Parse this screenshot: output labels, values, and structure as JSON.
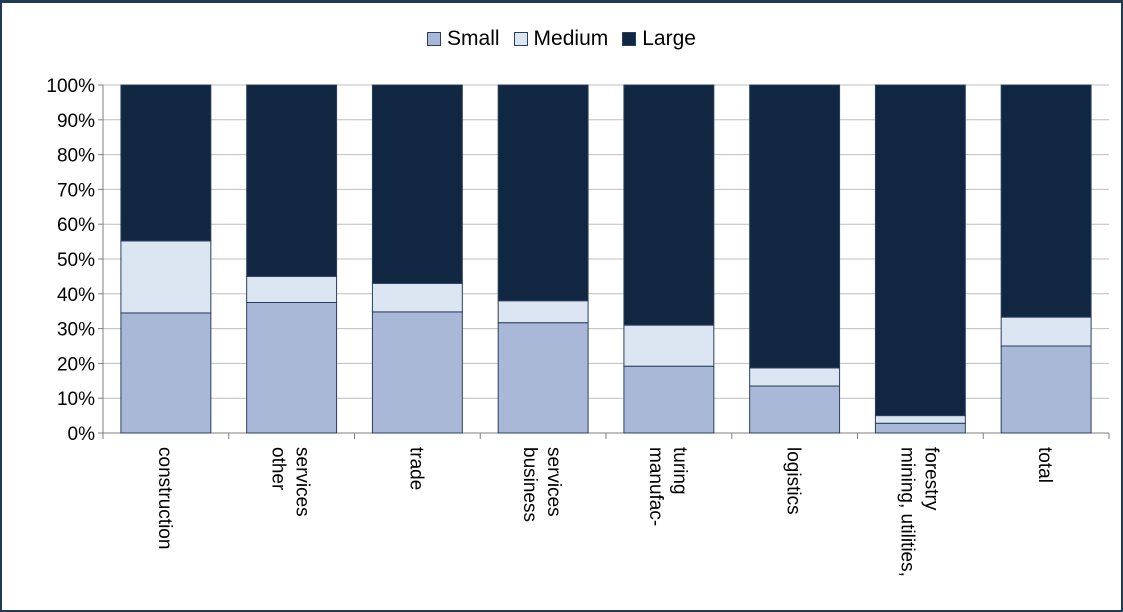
{
  "chart_data": {
    "type": "bar",
    "stacked": true,
    "percent": true,
    "title": "",
    "xlabel": "",
    "ylabel": "",
    "ylim": [
      0,
      100
    ],
    "yticks": [
      0,
      10,
      20,
      30,
      40,
      50,
      60,
      70,
      80,
      90,
      100
    ],
    "ytick_format": "{v}%",
    "grid": true,
    "legend_position": "top",
    "categories": [
      [
        "construction"
      ],
      [
        "other",
        "services"
      ],
      [
        "trade"
      ],
      [
        "business",
        "services"
      ],
      [
        "manufac-",
        "turing"
      ],
      [
        "logistics"
      ],
      [
        "mining, utilities,",
        "forestry"
      ],
      [
        "total"
      ]
    ],
    "series": [
      {
        "name": "Small",
        "color": "#aab8d8",
        "values": [
          34.5,
          37.5,
          34.8,
          31.7,
          19.2,
          13.5,
          2.8,
          25.0
        ]
      },
      {
        "name": "Medium",
        "color": "#dce6f2",
        "values": [
          20.7,
          7.5,
          8.2,
          6.3,
          11.8,
          5.2,
          2.2,
          8.3
        ]
      },
      {
        "name": "Large",
        "color": "#112641",
        "values": [
          44.8,
          55.0,
          57.0,
          62.0,
          69.0,
          81.3,
          95.0,
          66.7
        ]
      }
    ]
  }
}
